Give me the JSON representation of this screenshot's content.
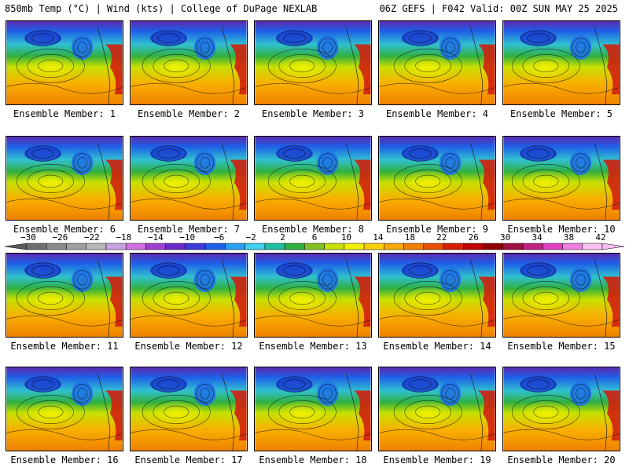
{
  "header": {
    "left": "850mb Temp (°C) | Wind (kts) | College of DuPage NEXLAB",
    "right": "06Z GEFS | F042 Valid: 00Z SUN MAY 25 2025"
  },
  "panels": [
    "Ensemble Member: 1",
    "Ensemble Member: 2",
    "Ensemble Member: 3",
    "Ensemble Member: 4",
    "Ensemble Member: 5",
    "Ensemble Member: 6",
    "Ensemble Member: 7",
    "Ensemble Member: 8",
    "Ensemble Member: 9",
    "Ensemble Member: 10",
    "Ensemble Member: 11",
    "Ensemble Member: 12",
    "Ensemble Member: 13",
    "Ensemble Member: 14",
    "Ensemble Member: 15",
    "Ensemble Member: 16",
    "Ensemble Member: 17",
    "Ensemble Member: 18",
    "Ensemble Member: 19",
    "Ensemble Member: 20"
  ],
  "colorbar": {
    "labels": [
      "-30",
      "-26",
      "-22",
      "-18",
      "-14",
      "-10",
      "-6",
      "-2",
      "2",
      "6",
      "10",
      "14",
      "18",
      "22",
      "26",
      "30",
      "34",
      "38",
      "42"
    ],
    "colors": [
      "#6f6f6f",
      "#8a8a8a",
      "#a0a0a0",
      "#b8b8b8",
      "#c9a0e0",
      "#d070e0",
      "#a040d0",
      "#6a2ac8",
      "#3b3bd8",
      "#1e60e8",
      "#2aa0f0",
      "#40d0f0",
      "#20c0a0",
      "#30b040",
      "#80c020",
      "#c8e000",
      "#f0f000",
      "#f8d000",
      "#f8a800",
      "#f08000",
      "#e85000",
      "#d82000",
      "#c00000",
      "#900000",
      "#a01040",
      "#c02080",
      "#e040c0",
      "#f080e0",
      "#f8c0f0"
    ]
  }
}
